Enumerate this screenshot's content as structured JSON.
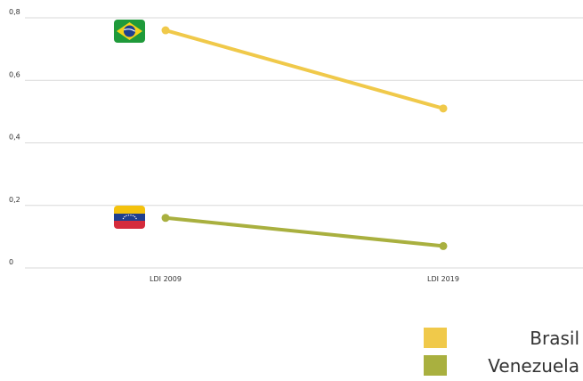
{
  "chart_data": {
    "type": "line",
    "categories": [
      "LDI 2009",
      "LDI 2019"
    ],
    "series": [
      {
        "name": "Brasil",
        "values": [
          0.76,
          0.51
        ],
        "color": "#f0c94a",
        "flag": "brazil-flag-icon"
      },
      {
        "name": "Venezuela",
        "values": [
          0.16,
          0.07
        ],
        "color": "#a9b03f",
        "flag": "venezuela-flag-icon"
      }
    ],
    "yticks": [
      "0",
      "0,2",
      "0,4",
      "0,6",
      "0,8"
    ],
    "ytick_values": [
      0,
      0.2,
      0.4,
      0.6,
      0.8
    ],
    "ylim": [
      0,
      0.8
    ],
    "grid": true,
    "legend_position": "bottom-right"
  }
}
